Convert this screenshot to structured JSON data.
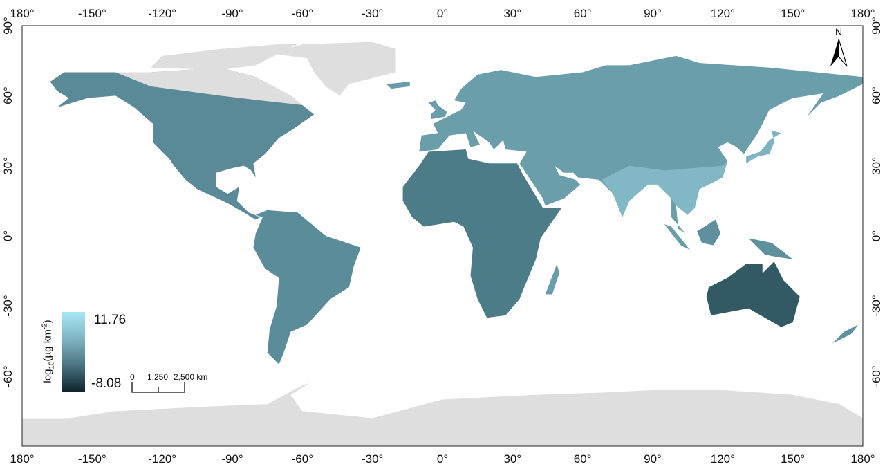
{
  "map": {
    "projection": "plate carree",
    "lon_ticks": [
      "180°",
      "-150°",
      "-120°",
      "-90°",
      "-60°",
      "-30°",
      "0°",
      "30°",
      "60°",
      "90°",
      "120°",
      "150°",
      "180°"
    ],
    "lat_ticks": [
      "90°",
      "60°",
      "30°",
      "0°",
      "-30°",
      "-60°"
    ],
    "colors": {
      "land_high": "#a8e6f5",
      "land_mid": "#5f909d",
      "land_low": "#10242c",
      "no_data": "#dedede",
      "ocean": "#ffffff"
    }
  },
  "legend": {
    "title_prefix": "log",
    "title_sub": "10",
    "title_main": "(µg km",
    "title_sup": "-2",
    "title_end": ")",
    "max": "11.76",
    "min": "-8.08"
  },
  "scale_bar": {
    "labels": [
      "0",
      "1,250",
      "2,500 km"
    ]
  },
  "north_arrow": {
    "label": "N"
  }
}
